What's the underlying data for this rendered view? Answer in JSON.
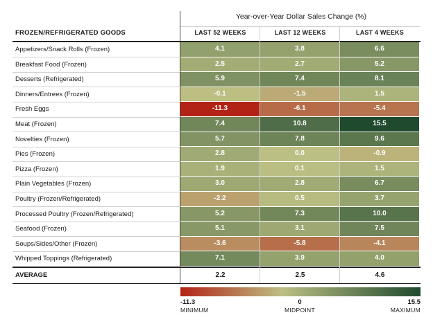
{
  "chart_data": {
    "type": "heatmap",
    "title": "Year-over-Year Dollar Sales Change (%)",
    "row_header": "FROZEN/REFRIGERATED GOODS",
    "columns": [
      "LAST 52 WEEKS",
      "LAST 12 WEEKS",
      "LAST 4 WEEKS"
    ],
    "rows": [
      {
        "label": "Appetizers/Snack Rolls (Frozen)",
        "values": [
          "4.1",
          "3.8",
          "6.6"
        ]
      },
      {
        "label": "Breakfast Food (Frozen)",
        "values": [
          "2.5",
          "2.7",
          "5.2"
        ]
      },
      {
        "label": "Desserts (Refrigerated)",
        "values": [
          "5.9",
          "7.4",
          "8.1"
        ]
      },
      {
        "label": "Dinners/Entrees (Frozen)",
        "values": [
          "-0.1",
          "-1.5",
          "1.5"
        ]
      },
      {
        "label": "Fresh Eggs",
        "values": [
          "-11.3",
          "-6.1",
          "-5.4"
        ]
      },
      {
        "label": "Meat (Frozen)",
        "values": [
          "7.4",
          "10.8",
          "15.5"
        ]
      },
      {
        "label": "Novelties (Frozen)",
        "values": [
          "5.7",
          "7.8",
          "9.6"
        ]
      },
      {
        "label": "Pies (Frozen)",
        "values": [
          "2.8",
          "0.0",
          "-0.9"
        ]
      },
      {
        "label": "Pizza (Frozen)",
        "values": [
          "1.9",
          "0.1",
          "1.5"
        ]
      },
      {
        "label": "Plain Vegetables (Frozen)",
        "values": [
          "3.0",
          "2.8",
          "6.7"
        ]
      },
      {
        "label": "Poultry (Frozen/Refrigerated)",
        "values": [
          "-2.2",
          "0.5",
          "3.7"
        ]
      },
      {
        "label": "Processed Poultry (Frozen/Refrigerated)",
        "values": [
          "5.2",
          "7.3",
          "10.0"
        ]
      },
      {
        "label": "Seafood (Frozen)",
        "values": [
          "5.1",
          "3.1",
          "7.5"
        ]
      },
      {
        "label": "Soups/Sides/Other (Frozen)",
        "values": [
          "-3.6",
          "-5.8",
          "-4.1"
        ]
      },
      {
        "label": "Whipped Toppings (Refrigerated)",
        "values": [
          "7.1",
          "3.9",
          "4.0"
        ]
      }
    ],
    "average": {
      "label": "AVERAGE",
      "values": [
        "2.2",
        "2.5",
        "4.6"
      ]
    },
    "scale": {
      "min": -11.3,
      "mid": 0,
      "max": 15.5,
      "min_text": "-11.3",
      "mid_text": "0",
      "max_text": "15.5",
      "min_label": "MINIMUM",
      "mid_label": "MIDPOINT",
      "max_label": "MAXIMUM",
      "min_color": "#b22316",
      "mid_color": "#bcbf83",
      "max_color": "#1f4a2e"
    }
  }
}
